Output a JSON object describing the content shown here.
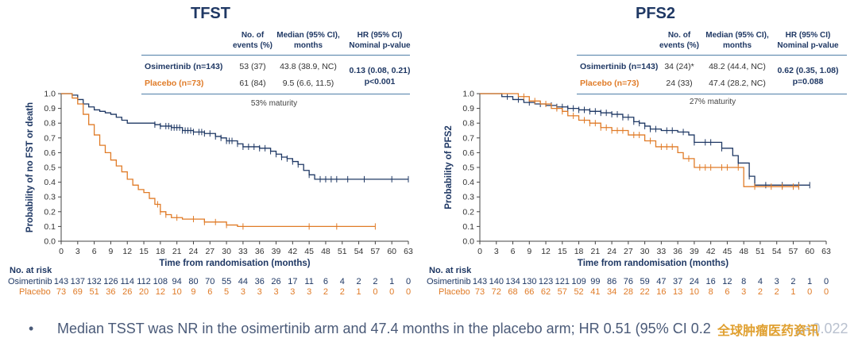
{
  "colors": {
    "osimertinib": "#1f3864",
    "placebo": "#e07b27",
    "title": "#1f3864",
    "table_line": "#4f7fa8"
  },
  "table_headers": {
    "events": "No. of\nevents (%)",
    "median": "Median (95% CI),\nmonths",
    "hr": "HR (95% CI)\nNominal p-value"
  },
  "panels": [
    {
      "title": "TFST",
      "rows": [
        {
          "arm": "Osimertinib (n=143)",
          "events": "53 (37)",
          "median": "43.8 (38.9, NC)"
        },
        {
          "arm": "Placebo (n=73)",
          "events": "61 (84)",
          "median": "9.5 (6.6, 11.5)"
        }
      ],
      "hr_line1": "0.13 (0.08, 0.21)",
      "hr_line2": "p<0.001",
      "maturity": "53% maturity"
    },
    {
      "title": "PFS2",
      "rows": [
        {
          "arm": "Osimertinib (n=143)",
          "events": "34 (24)*",
          "median": "48.2 (44.4, NC)"
        },
        {
          "arm": "Placebo (n=73)",
          "events": "24 (33)",
          "median": "47.4 (28.2, NC)"
        }
      ],
      "hr_line1": "0.62 (0.35, 1.08)",
      "hr_line2": "p=0.088",
      "maturity": "27% maturity"
    }
  ],
  "chart_data": [
    {
      "type": "line",
      "title": "TFST",
      "xlabel": "Time from randomisation (months)",
      "ylabel": "Probability of no FST or death",
      "xlim": [
        0,
        63
      ],
      "ylim": [
        0,
        1
      ],
      "x_ticks": [
        "0",
        "3",
        "6",
        "9",
        "12",
        "15",
        "18",
        "21",
        "24",
        "27",
        "30",
        "33",
        "36",
        "39",
        "42",
        "45",
        "48",
        "51",
        "54",
        "57",
        "60",
        "63"
      ],
      "y_ticks": [
        "0.0",
        "0.1",
        "0.2",
        "0.3",
        "0.4",
        "0.5",
        "0.6",
        "0.7",
        "0.8",
        "0.9",
        "1.0"
      ],
      "series": [
        {
          "name": "Osimertinib",
          "steps": [
            [
              0,
              1.0
            ],
            [
              2,
              0.99
            ],
            [
              3,
              0.96
            ],
            [
              4,
              0.93
            ],
            [
              5,
              0.91
            ],
            [
              6,
              0.89
            ],
            [
              7,
              0.88
            ],
            [
              8,
              0.87
            ],
            [
              9,
              0.86
            ],
            [
              10,
              0.84
            ],
            [
              11,
              0.82
            ],
            [
              12,
              0.8
            ],
            [
              17,
              0.79
            ],
            [
              18,
              0.78
            ],
            [
              20,
              0.77
            ],
            [
              22,
              0.75
            ],
            [
              24,
              0.74
            ],
            [
              26,
              0.73
            ],
            [
              28,
              0.71
            ],
            [
              29,
              0.7
            ],
            [
              30,
              0.68
            ],
            [
              32,
              0.66
            ],
            [
              33,
              0.64
            ],
            [
              36,
              0.63
            ],
            [
              38,
              0.61
            ],
            [
              39,
              0.59
            ],
            [
              40,
              0.57
            ],
            [
              41,
              0.56
            ],
            [
              42,
              0.54
            ],
            [
              43,
              0.52
            ],
            [
              44,
              0.48
            ],
            [
              45,
              0.45
            ],
            [
              46,
              0.42
            ],
            [
              63,
              0.42
            ]
          ],
          "censor_x": [
            17,
            18,
            19,
            19.5,
            20,
            20.5,
            21,
            21.5,
            22,
            22.5,
            23,
            23.5,
            24,
            25,
            25.5,
            26,
            27,
            28,
            29,
            30,
            30.5,
            31,
            32,
            33,
            34,
            35,
            36,
            37,
            38,
            39,
            40,
            41,
            42,
            43,
            45,
            47,
            48,
            49,
            50,
            52,
            55,
            60,
            63
          ]
        },
        {
          "name": "Placebo",
          "steps": [
            [
              0,
              1.0
            ],
            [
              2,
              0.97
            ],
            [
              3,
              0.93
            ],
            [
              4,
              0.86
            ],
            [
              5,
              0.79
            ],
            [
              6,
              0.72
            ],
            [
              7,
              0.65
            ],
            [
              8,
              0.6
            ],
            [
              9,
              0.55
            ],
            [
              10,
              0.51
            ],
            [
              11,
              0.47
            ],
            [
              12,
              0.42
            ],
            [
              13,
              0.38
            ],
            [
              14,
              0.35
            ],
            [
              15,
              0.33
            ],
            [
              16,
              0.29
            ],
            [
              17,
              0.25
            ],
            [
              18,
              0.2
            ],
            [
              19,
              0.18
            ],
            [
              20,
              0.16
            ],
            [
              22,
              0.15
            ],
            [
              26,
              0.13
            ],
            [
              30,
              0.11
            ],
            [
              32,
              0.1
            ],
            [
              57,
              0.1
            ]
          ],
          "censor_x": [
            17.5,
            18,
            19,
            21,
            24,
            26,
            28,
            30,
            33,
            45,
            50,
            57
          ]
        }
      ],
      "risk_table": {
        "title": "No. at risk",
        "rows": [
          {
            "label": "Osimertinib",
            "values": [
              "143",
              "137",
              "132",
              "126",
              "114",
              "112",
              "108",
              "94",
              "80",
              "70",
              "55",
              "44",
              "36",
              "26",
              "17",
              "11",
              "6",
              "4",
              "2",
              "2",
              "1",
              "0"
            ]
          },
          {
            "label": "Placebo",
            "values": [
              "73",
              "69",
              "51",
              "36",
              "26",
              "20",
              "12",
              "10",
              "9",
              "6",
              "5",
              "3",
              "3",
              "3",
              "3",
              "3",
              "2",
              "2",
              "1",
              "0",
              "0",
              "0"
            ]
          }
        ]
      }
    },
    {
      "type": "line",
      "title": "PFS2",
      "xlabel": "Time from randomisation (months)",
      "ylabel": "Probability of PFS2",
      "xlim": [
        0,
        63
      ],
      "ylim": [
        0,
        1
      ],
      "x_ticks": [
        "0",
        "3",
        "6",
        "9",
        "12",
        "15",
        "18",
        "21",
        "24",
        "27",
        "30",
        "33",
        "36",
        "39",
        "42",
        "45",
        "48",
        "51",
        "54",
        "57",
        "60",
        "63"
      ],
      "y_ticks": [
        "0.0",
        "0.1",
        "0.2",
        "0.3",
        "0.4",
        "0.5",
        "0.6",
        "0.7",
        "0.8",
        "0.9",
        "1.0"
      ],
      "series": [
        {
          "name": "Osimertinib",
          "steps": [
            [
              0,
              1.0
            ],
            [
              4,
              0.98
            ],
            [
              6,
              0.96
            ],
            [
              8,
              0.94
            ],
            [
              10,
              0.93
            ],
            [
              12,
              0.92
            ],
            [
              14,
              0.91
            ],
            [
              16,
              0.9
            ],
            [
              18,
              0.89
            ],
            [
              20,
              0.88
            ],
            [
              22,
              0.87
            ],
            [
              24,
              0.86
            ],
            [
              26,
              0.84
            ],
            [
              28,
              0.81
            ],
            [
              29,
              0.8
            ],
            [
              30,
              0.78
            ],
            [
              31,
              0.76
            ],
            [
              33,
              0.75
            ],
            [
              36,
              0.74
            ],
            [
              38,
              0.72
            ],
            [
              39,
              0.67
            ],
            [
              44,
              0.63
            ],
            [
              46,
              0.58
            ],
            [
              47,
              0.53
            ],
            [
              49,
              0.44
            ],
            [
              50,
              0.38
            ],
            [
              60,
              0.38
            ]
          ],
          "censor_x": [
            5,
            7,
            9,
            11,
            13,
            14,
            15,
            16,
            17,
            18,
            19,
            20,
            21,
            22,
            23,
            24,
            25,
            26,
            27,
            28,
            29,
            30,
            31,
            32,
            34,
            35,
            37,
            39,
            41,
            42,
            44,
            47,
            49,
            52,
            55,
            58,
            60
          ]
        },
        {
          "name": "Placebo",
          "steps": [
            [
              0,
              1.0
            ],
            [
              7,
              0.98
            ],
            [
              9,
              0.95
            ],
            [
              11,
              0.93
            ],
            [
              13,
              0.9
            ],
            [
              15,
              0.88
            ],
            [
              16,
              0.85
            ],
            [
              18,
              0.82
            ],
            [
              20,
              0.8
            ],
            [
              22,
              0.77
            ],
            [
              24,
              0.75
            ],
            [
              27,
              0.72
            ],
            [
              30,
              0.68
            ],
            [
              32,
              0.64
            ],
            [
              36,
              0.6
            ],
            [
              37,
              0.56
            ],
            [
              39,
              0.5
            ],
            [
              48,
              0.37
            ],
            [
              58,
              0.37
            ]
          ],
          "censor_x": [
            8,
            10,
            12,
            14,
            15,
            17,
            19,
            20,
            21,
            22,
            23,
            24,
            25,
            26,
            28,
            29,
            31,
            33,
            34,
            35,
            38,
            40,
            41,
            42,
            44,
            45,
            47,
            50,
            53,
            55,
            57,
            58
          ]
        }
      ],
      "risk_table": {
        "title": "No. at risk",
        "rows": [
          {
            "label": "Osimertinib",
            "values": [
              "143",
              "140",
              "134",
              "130",
              "123",
              "121",
              "109",
              "99",
              "86",
              "76",
              "59",
              "47",
              "37",
              "24",
              "16",
              "12",
              "8",
              "4",
              "3",
              "2",
              "1",
              "0"
            ]
          },
          {
            "label": "Placebo",
            "values": [
              "73",
              "72",
              "68",
              "66",
              "62",
              "57",
              "52",
              "41",
              "34",
              "28",
              "22",
              "16",
              "13",
              "10",
              "8",
              "6",
              "3",
              "2",
              "2",
              "1",
              "0",
              "0"
            ]
          }
        ]
      }
    }
  ],
  "footer": {
    "bullet": "•",
    "text": "Median TSST was NR in the osimertinib arm and 47.4 months in the placebo arm; HR 0.51 (95% CI 0.2",
    "text_tail": "p=0.022",
    "watermark": "全球肿瘤医药资讯"
  }
}
